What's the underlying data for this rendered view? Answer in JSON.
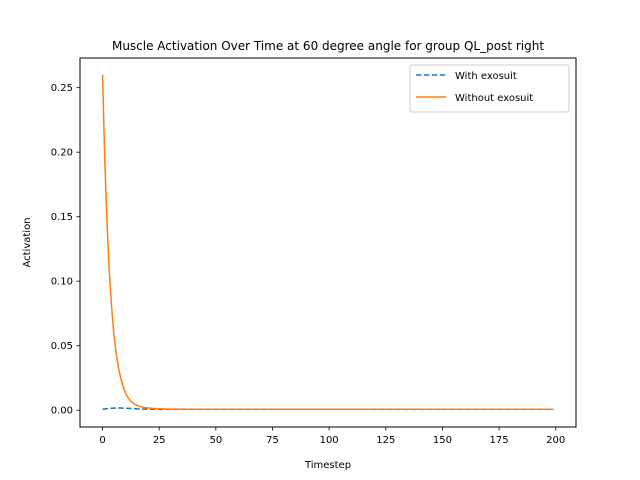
{
  "chart_data": {
    "type": "line",
    "title": "Muscle Activation Over Time at 60 degree angle for group QL_post right",
    "xlabel": "Timestep",
    "ylabel": "Activation",
    "xlim": [
      -9.95,
      208.95
    ],
    "ylim": [
      -0.013,
      0.273
    ],
    "xticks": [
      0,
      25,
      50,
      75,
      100,
      125,
      150,
      175,
      200
    ],
    "yticks": [
      0.0,
      0.05,
      0.1,
      0.15,
      0.2,
      0.25
    ],
    "ytick_labels": [
      "0.00",
      "0.05",
      "0.10",
      "0.15",
      "0.20",
      "0.25"
    ],
    "grid": false,
    "legend_position": "upper right",
    "series": [
      {
        "name": "With exosuit",
        "color": "#1f77b4",
        "style": "dashed",
        "x": [
          0,
          2,
          4,
          6,
          8,
          10,
          12,
          14,
          16,
          18,
          20,
          25,
          30,
          40,
          50,
          75,
          100,
          125,
          150,
          175,
          199
        ],
        "y": [
          0.0008,
          0.0012,
          0.0015,
          0.0017,
          0.0017,
          0.0016,
          0.0014,
          0.0012,
          0.001,
          0.0009,
          0.0008,
          0.0007,
          0.0007,
          0.0007,
          0.0007,
          0.0007,
          0.0007,
          0.0007,
          0.0007,
          0.0007,
          0.0007
        ]
      },
      {
        "name": "Without exosuit",
        "color": "#ff7f0e",
        "style": "solid",
        "x": [
          0,
          1,
          2,
          3,
          4,
          5,
          6,
          7,
          8,
          9,
          10,
          11,
          12,
          13,
          14,
          15,
          16,
          17,
          18,
          19,
          20,
          22,
          24,
          26,
          28,
          30,
          35,
          40,
          50,
          75,
          100,
          125,
          150,
          175,
          199
        ],
        "y": [
          0.26,
          0.193,
          0.144,
          0.107,
          0.08,
          0.059,
          0.044,
          0.033,
          0.025,
          0.019,
          0.014,
          0.0105,
          0.008,
          0.0062,
          0.0049,
          0.0039,
          0.0032,
          0.0027,
          0.0023,
          0.002,
          0.0017,
          0.0014,
          0.0012,
          0.0011,
          0.001,
          0.0009,
          0.0009,
          0.0008,
          0.0008,
          0.0008,
          0.0008,
          0.0008,
          0.0008,
          0.0008,
          0.0008
        ]
      }
    ]
  }
}
